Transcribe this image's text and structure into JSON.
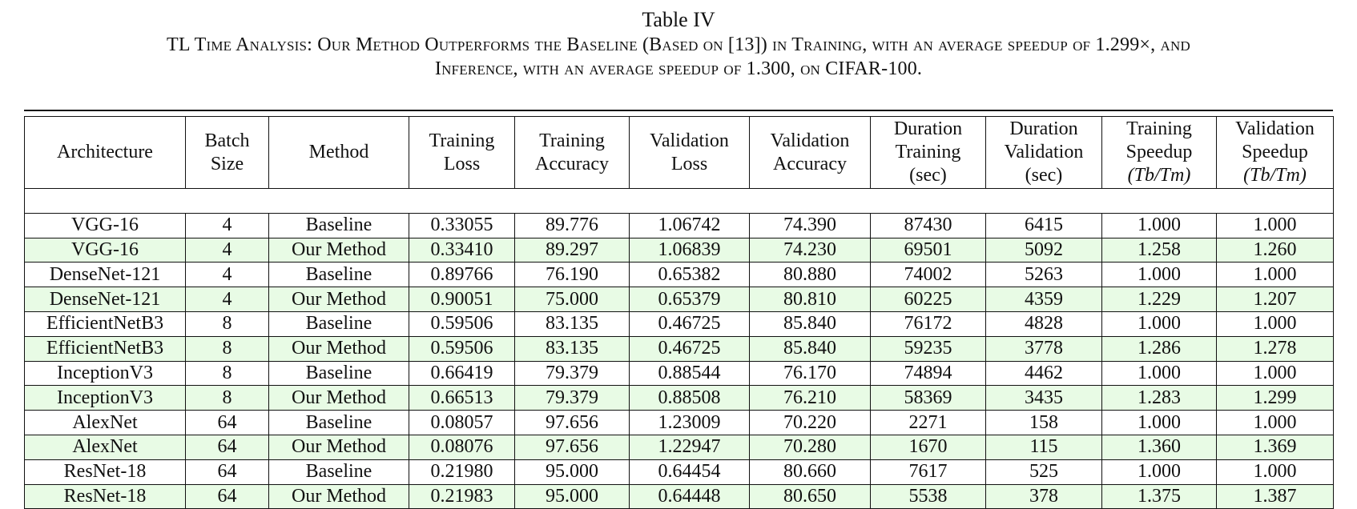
{
  "caption": {
    "label": "Table IV",
    "line1": "TL Time Analysis: Our Method Outperforms the Baseline (Based on [13]) in Training, with an average speedup of 1.299×, and",
    "line2": "Inference, with an average speedup of 1.300, on CIFAR-100."
  },
  "colors": {
    "highlight_row": "#e8fbe5",
    "rule": "#111111"
  },
  "table": {
    "headers": [
      [
        "Architecture"
      ],
      [
        "Batch",
        "Size"
      ],
      [
        "Method"
      ],
      [
        "Training",
        "Loss"
      ],
      [
        "Training",
        "Accuracy"
      ],
      [
        "Validation",
        "Loss"
      ],
      [
        "Validation",
        "Accuracy"
      ],
      [
        "Duration",
        "Training",
        "(sec)"
      ],
      [
        "Duration",
        "Validation",
        "(sec)"
      ],
      [
        "Training",
        "Speedup",
        "(Tb/Tm)"
      ],
      [
        "Validation",
        "Speedup",
        "(Tb/Tm)"
      ]
    ],
    "rows": [
      {
        "highlight": false,
        "cells": [
          "VGG-16",
          "4",
          "Baseline",
          "0.33055",
          "89.776",
          "1.06742",
          "74.390",
          "87430",
          "6415",
          "1.000",
          "1.000"
        ]
      },
      {
        "highlight": true,
        "cells": [
          "VGG-16",
          "4",
          "Our Method",
          "0.33410",
          "89.297",
          "1.06839",
          "74.230",
          "69501",
          "5092",
          "1.258",
          "1.260"
        ]
      },
      {
        "highlight": false,
        "cells": [
          "DenseNet-121",
          "4",
          "Baseline",
          "0.89766",
          "76.190",
          "0.65382",
          "80.880",
          "74002",
          "5263",
          "1.000",
          "1.000"
        ]
      },
      {
        "highlight": true,
        "cells": [
          "DenseNet-121",
          "4",
          "Our Method",
          "0.90051",
          "75.000",
          "0.65379",
          "80.810",
          "60225",
          "4359",
          "1.229",
          "1.207"
        ]
      },
      {
        "highlight": false,
        "cells": [
          "EfficientNetB3",
          "8",
          "Baseline",
          "0.59506",
          "83.135",
          "0.46725",
          "85.840",
          "76172",
          "4828",
          "1.000",
          "1.000"
        ]
      },
      {
        "highlight": true,
        "cells": [
          "EfficientNetB3",
          "8",
          "Our Method",
          "0.59506",
          "83.135",
          "0.46725",
          "85.840",
          "59235",
          "3778",
          "1.286",
          "1.278"
        ]
      },
      {
        "highlight": false,
        "cells": [
          "InceptionV3",
          "8",
          "Baseline",
          "0.66419",
          "79.379",
          "0.88544",
          "76.170",
          "74894",
          "4462",
          "1.000",
          "1.000"
        ]
      },
      {
        "highlight": true,
        "cells": [
          "InceptionV3",
          "8",
          "Our Method",
          "0.66513",
          "79.379",
          "0.88508",
          "76.210",
          "58369",
          "3435",
          "1.283",
          "1.299"
        ]
      },
      {
        "highlight": false,
        "cells": [
          "AlexNet",
          "64",
          "Baseline",
          "0.08057",
          "97.656",
          "1.23009",
          "70.220",
          "2271",
          "158",
          "1.000",
          "1.000"
        ]
      },
      {
        "highlight": true,
        "cells": [
          "AlexNet",
          "64",
          "Our Method",
          "0.08076",
          "97.656",
          "1.22947",
          "70.280",
          "1670",
          "115",
          "1.360",
          "1.369"
        ]
      },
      {
        "highlight": false,
        "cells": [
          "ResNet-18",
          "64",
          "Baseline",
          "0.21980",
          "95.000",
          "0.64454",
          "80.660",
          "7617",
          "525",
          "1.000",
          "1.000"
        ]
      },
      {
        "highlight": true,
        "cells": [
          "ResNet-18",
          "64",
          "Our Method",
          "0.21983",
          "95.000",
          "0.64448",
          "80.650",
          "5538",
          "378",
          "1.375",
          "1.387"
        ]
      }
    ]
  }
}
